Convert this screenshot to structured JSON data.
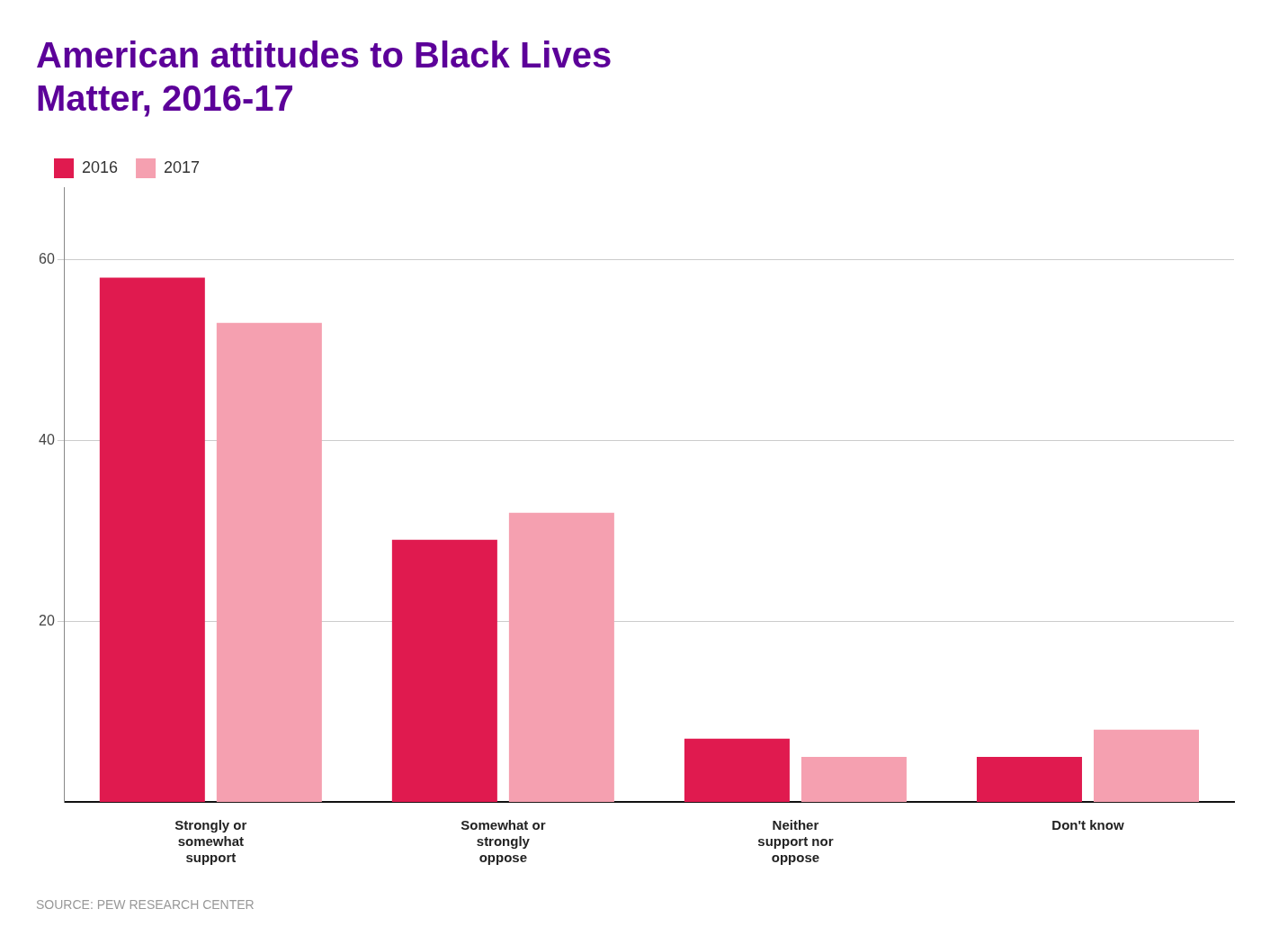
{
  "chart_data": {
    "type": "bar",
    "title": "American attitudes to Black Lives\nMatter, 2016-17",
    "source": "SOURCE: PEW RESEARCH CENTER",
    "categories": [
      "Strongly or\nsomewhat\nsupport",
      "Somewhat or\nstrongly\noppose",
      "Neither\nsupport nor\noppose",
      "Don't know"
    ],
    "series": [
      {
        "name": "2016",
        "color": "#E01A4F",
        "values": [
          58,
          29,
          7,
          5
        ]
      },
      {
        "name": "2017",
        "color": "#F5A0B0",
        "values": [
          53,
          32,
          5,
          8
        ]
      }
    ],
    "ylim": [
      0,
      68
    ],
    "yticks": [
      20,
      40,
      60
    ],
    "grid": true,
    "legend": "upper left"
  }
}
